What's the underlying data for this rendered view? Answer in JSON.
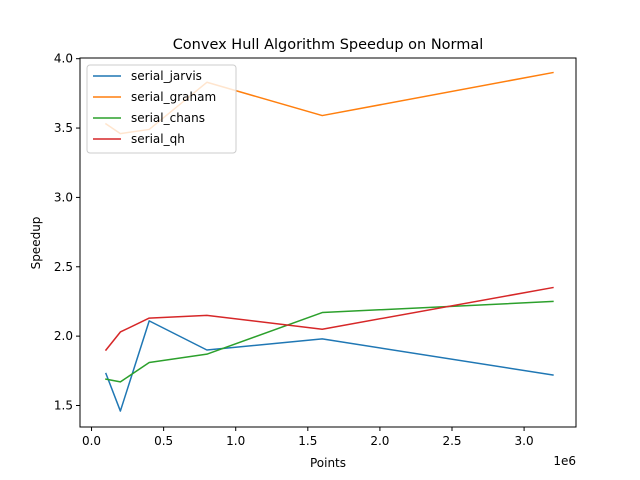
{
  "chart_data": {
    "type": "line",
    "title": "Convex Hull Algorithm Speedup on Normal",
    "xlabel": "Points",
    "ylabel": "Speedup",
    "x_offset_label": "1e6",
    "x": [
      100000,
      200000,
      400000,
      800000,
      1600000,
      3200000
    ],
    "xlim": [
      -80000,
      3360000
    ],
    "ylim": [
      1.345,
      4.005
    ],
    "x_ticks": [
      0,
      500000,
      1000000,
      1500000,
      2000000,
      2500000,
      3000000
    ],
    "x_tick_labels": [
      "0.0",
      "0.5",
      "1.0",
      "1.5",
      "2.0",
      "2.5",
      "3.0"
    ],
    "y_ticks": [
      1.5,
      2.0,
      2.5,
      3.0,
      3.5,
      4.0
    ],
    "y_tick_labels": [
      "1.5",
      "2.0",
      "2.5",
      "3.0",
      "3.5",
      "4.0"
    ],
    "grid": false,
    "legend_position": "top-left",
    "series": [
      {
        "name": "serial_jarvis",
        "color": "#1f77b4",
        "values": [
          1.73,
          1.46,
          2.11,
          1.9,
          1.98,
          1.72
        ]
      },
      {
        "name": "serial_graham",
        "color": "#ff7f0e",
        "values": [
          3.53,
          3.46,
          3.49,
          3.83,
          3.59,
          3.9
        ]
      },
      {
        "name": "serial_chans",
        "color": "#2ca02c",
        "values": [
          1.69,
          1.67,
          1.81,
          1.87,
          2.17,
          2.25
        ]
      },
      {
        "name": "serial_qh",
        "color": "#d62728",
        "values": [
          1.9,
          2.03,
          2.13,
          2.15,
          2.05,
          2.35
        ]
      }
    ]
  }
}
